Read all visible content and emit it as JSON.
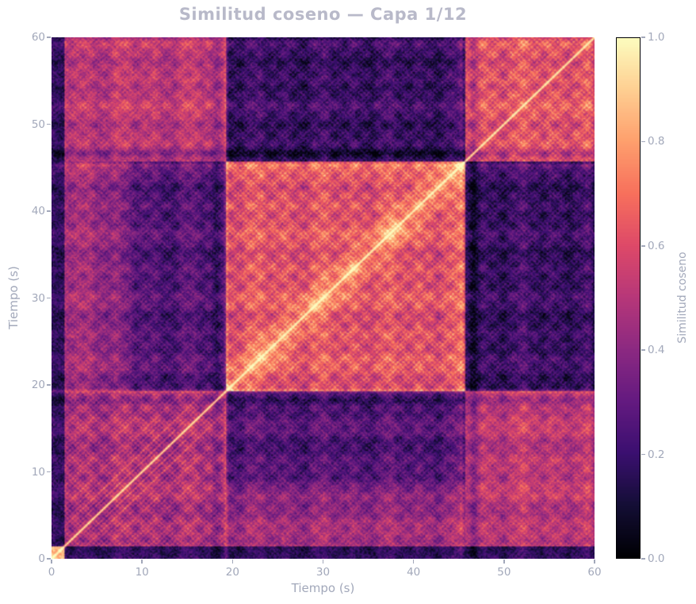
{
  "chart_data": {
    "type": "heatmap",
    "title": "Similitud coseno — Capa 1/12",
    "xlabel": "Tiempo (s)",
    "ylabel": "Tiempo (s)",
    "x_range": [
      0,
      60
    ],
    "y_range": [
      0,
      60
    ],
    "x_ticks": [
      0,
      10,
      20,
      30,
      40,
      50,
      60
    ],
    "y_ticks": [
      0,
      10,
      20,
      30,
      40,
      50,
      60
    ],
    "grid": false,
    "legend": "none",
    "colorbar": {
      "label": "Similitud coseno",
      "range": [
        0,
        1
      ],
      "ticks": [
        "0.0",
        "0.2",
        "0.4",
        "0.6",
        "0.8",
        "1.0"
      ],
      "colormap": "magma",
      "stops": [
        [
          0.0,
          "#000004"
        ],
        [
          0.1,
          "#140e36"
        ],
        [
          0.2,
          "#3b0f70"
        ],
        [
          0.3,
          "#641a80"
        ],
        [
          0.4,
          "#8c2981"
        ],
        [
          0.5,
          "#b73779"
        ],
        [
          0.6,
          "#de4968"
        ],
        [
          0.7,
          "#f7705c"
        ],
        [
          0.8,
          "#fe9f6d"
        ],
        [
          0.9,
          "#fecf92"
        ],
        [
          1.0,
          "#fcfdbf"
        ]
      ]
    },
    "matrix": {
      "kind": "self-similarity",
      "symmetric": true,
      "diagonal_value": 1.0,
      "time_range_s": [
        0,
        60
      ],
      "segments_s": [
        0,
        1.5,
        19.3,
        45.7,
        60
      ],
      "block_means": [
        [
          0.82,
          0.15,
          0.14,
          0.15
        ],
        [
          0.15,
          0.48,
          0.26,
          0.52
        ],
        [
          0.14,
          0.26,
          0.62,
          0.2
        ],
        [
          0.15,
          0.52,
          0.2,
          0.63
        ]
      ],
      "texture": {
        "beat_period_s": 0.58,
        "beat_amp": 0.1,
        "bar_period_s": 2.32,
        "bar_amp": 0.07,
        "column_mod_amp": 0.055,
        "noise_amp": 0.08,
        "diag_width_s": 0.16,
        "a_stripe_lag_s": 1.16,
        "a_stripe_amp": 0.2,
        "b_diag_glow_amp": 0.16,
        "b_diag_glow_width_s": 2.6,
        "boundary_glow_amp": 0.16,
        "ab_early_boost": 0.2
      }
    }
  },
  "style": {
    "background": "#ffffff",
    "title_color": "#b8b9c9",
    "text_color": "#a2a8ba",
    "colorbar_border": "#000004"
  }
}
